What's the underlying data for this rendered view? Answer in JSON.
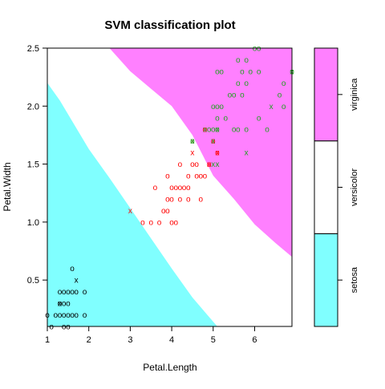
{
  "chart_data": {
    "type": "scatter",
    "title": "SVM classification plot",
    "xlabel": "Petal.Length",
    "ylabel": "Petal.Width",
    "xlim": [
      1.0,
      6.9
    ],
    "ylim": [
      0.1,
      2.5
    ],
    "xticks": [
      1,
      2,
      3,
      4,
      5,
      6
    ],
    "yticks": [
      0.5,
      1.0,
      1.5,
      2.0,
      2.5
    ],
    "xtick_labels": [
      "1",
      "2",
      "3",
      "4",
      "5",
      "6"
    ],
    "ytick_labels": [
      "0.5",
      "1.0",
      "1.5",
      "2.0",
      "2.5"
    ],
    "grid": false,
    "markers": {
      "support_vector": "x",
      "data_point": "o"
    },
    "classes": [
      {
        "name": "setosa",
        "region_color": "#80ffff",
        "point_color": "#000000"
      },
      {
        "name": "versicolor",
        "region_color": "#ffffff",
        "point_color": "#ff0000"
      },
      {
        "name": "virginica",
        "region_color": "#ff80ff",
        "point_color": "#22a022"
      }
    ],
    "decision_boundaries": [
      {
        "between": [
          "setosa",
          "versicolor"
        ],
        "points": [
          [
            1.0,
            2.2
          ],
          [
            1.3,
            2.05
          ],
          [
            2.0,
            1.63
          ],
          [
            2.5,
            1.38
          ],
          [
            3.0,
            1.12
          ],
          [
            3.5,
            0.86
          ],
          [
            4.0,
            0.6
          ],
          [
            4.5,
            0.35
          ],
          [
            5.1,
            0.1
          ]
        ]
      },
      {
        "between": [
          "versicolor",
          "virginica"
        ],
        "points": [
          [
            2.5,
            2.5
          ],
          [
            3.0,
            2.3
          ],
          [
            3.5,
            2.15
          ],
          [
            4.0,
            2.0
          ],
          [
            4.5,
            1.75
          ],
          [
            5.0,
            1.4
          ],
          [
            5.5,
            1.2
          ],
          [
            6.0,
            0.98
          ],
          [
            6.5,
            0.82
          ],
          [
            6.9,
            0.7
          ]
        ]
      }
    ],
    "series": [
      {
        "name": "setosa",
        "points": [
          [
            1.0,
            0.2
          ],
          [
            1.1,
            0.1
          ],
          [
            1.2,
            0.2
          ],
          [
            1.3,
            0.2
          ],
          [
            1.3,
            0.3
          ],
          [
            1.3,
            0.4
          ],
          [
            1.4,
            0.1
          ],
          [
            1.4,
            0.2
          ],
          [
            1.4,
            0.3
          ],
          [
            1.4,
            0.4
          ],
          [
            1.5,
            0.1
          ],
          [
            1.5,
            0.2
          ],
          [
            1.5,
            0.3
          ],
          [
            1.5,
            0.4
          ],
          [
            1.6,
            0.2
          ],
          [
            1.6,
            0.4
          ],
          [
            1.6,
            0.6
          ],
          [
            1.7,
            0.2
          ],
          [
            1.7,
            0.4
          ],
          [
            1.9,
            0.2
          ],
          [
            1.9,
            0.4
          ]
        ],
        "support_vectors": [
          [
            1.3,
            0.3
          ],
          [
            1.7,
            0.5
          ]
        ]
      },
      {
        "name": "versicolor",
        "points": [
          [
            3.3,
            1.0
          ],
          [
            3.5,
            1.0
          ],
          [
            3.6,
            1.3
          ],
          [
            3.7,
            1.0
          ],
          [
            3.8,
            1.1
          ],
          [
            3.9,
            1.1
          ],
          [
            3.9,
            1.2
          ],
          [
            3.9,
            1.4
          ],
          [
            4.0,
            1.0
          ],
          [
            4.0,
            1.2
          ],
          [
            4.0,
            1.3
          ],
          [
            4.1,
            1.0
          ],
          [
            4.1,
            1.3
          ],
          [
            4.2,
            1.2
          ],
          [
            4.2,
            1.3
          ],
          [
            4.2,
            1.5
          ],
          [
            4.3,
            1.3
          ],
          [
            4.4,
            1.2
          ],
          [
            4.4,
            1.3
          ],
          [
            4.4,
            1.4
          ],
          [
            4.5,
            1.5
          ],
          [
            4.6,
            1.4
          ],
          [
            4.6,
            1.5
          ],
          [
            4.7,
            1.2
          ],
          [
            4.7,
            1.4
          ],
          [
            4.8,
            1.4
          ],
          [
            4.8,
            1.8
          ],
          [
            4.9,
            1.5
          ],
          [
            5.0,
            1.7
          ],
          [
            5.1,
            1.6
          ]
        ],
        "support_vectors": [
          [
            3.0,
            1.1
          ],
          [
            4.5,
            1.7
          ],
          [
            4.5,
            1.6
          ],
          [
            4.8,
            1.8
          ],
          [
            4.9,
            1.5
          ],
          [
            5.0,
            1.7
          ],
          [
            5.1,
            1.6
          ]
        ]
      },
      {
        "name": "virginica",
        "points": [
          [
            4.5,
            1.7
          ],
          [
            4.9,
            1.8
          ],
          [
            5.0,
            1.8
          ],
          [
            5.0,
            2.0
          ],
          [
            5.1,
            1.8
          ],
          [
            5.1,
            1.9
          ],
          [
            5.1,
            2.0
          ],
          [
            5.1,
            2.3
          ],
          [
            5.2,
            2.0
          ],
          [
            5.2,
            2.3
          ],
          [
            5.3,
            1.9
          ],
          [
            5.4,
            2.1
          ],
          [
            5.5,
            1.8
          ],
          [
            5.5,
            2.1
          ],
          [
            5.6,
            1.8
          ],
          [
            5.6,
            2.2
          ],
          [
            5.6,
            2.4
          ],
          [
            5.7,
            2.1
          ],
          [
            5.7,
            2.3
          ],
          [
            5.8,
            1.8
          ],
          [
            5.8,
            2.2
          ],
          [
            5.8,
            2.4
          ],
          [
            5.9,
            2.3
          ],
          [
            6.0,
            2.5
          ],
          [
            6.1,
            1.9
          ],
          [
            6.1,
            2.3
          ],
          [
            6.1,
            2.5
          ],
          [
            6.3,
            1.8
          ],
          [
            6.6,
            2.1
          ],
          [
            6.7,
            2.0
          ],
          [
            6.7,
            2.2
          ],
          [
            6.9,
            2.3
          ]
        ],
        "support_vectors": [
          [
            4.5,
            1.7
          ],
          [
            4.8,
            1.8
          ],
          [
            5.0,
            1.5
          ],
          [
            5.1,
            1.5
          ],
          [
            5.0,
            1.7
          ],
          [
            5.1,
            1.8
          ],
          [
            5.8,
            1.6
          ],
          [
            6.4,
            2.0
          ],
          [
            6.9,
            2.3
          ]
        ]
      }
    ]
  }
}
